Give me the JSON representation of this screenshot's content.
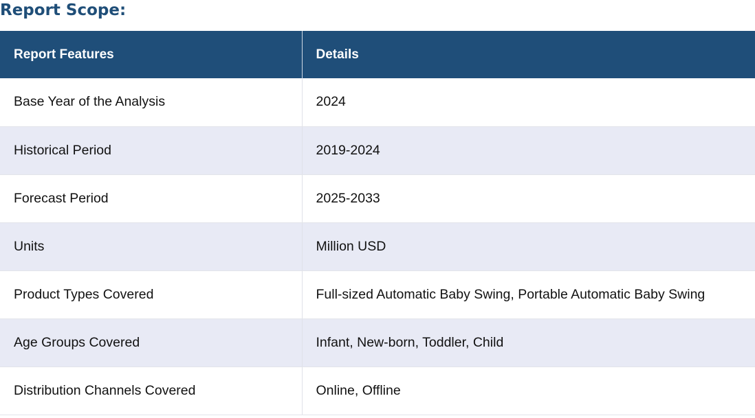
{
  "title": "Report Scope:",
  "table": {
    "headers": [
      "Report Features",
      "Details"
    ],
    "rows": [
      {
        "feature": "Base Year of the Analysis",
        "detail": "2024"
      },
      {
        "feature": "Historical Period",
        "detail": "2019-2024"
      },
      {
        "feature": "Forecast Period",
        "detail": "2025-2033"
      },
      {
        "feature": "Units",
        "detail": "Million USD"
      },
      {
        "feature": "Product Types Covered",
        "detail": "Full-sized Automatic Baby Swing, Portable Automatic Baby Swing"
      },
      {
        "feature": "Age Groups Covered",
        "detail": "Infant, New-born, Toddler, Child"
      },
      {
        "feature": "Distribution Channels Covered",
        "detail": "Online, Offline"
      }
    ]
  },
  "colors": {
    "heading": "#1f4e78",
    "header_bg": "#1f4e79",
    "alt_row_bg": "#e8eaf5"
  }
}
